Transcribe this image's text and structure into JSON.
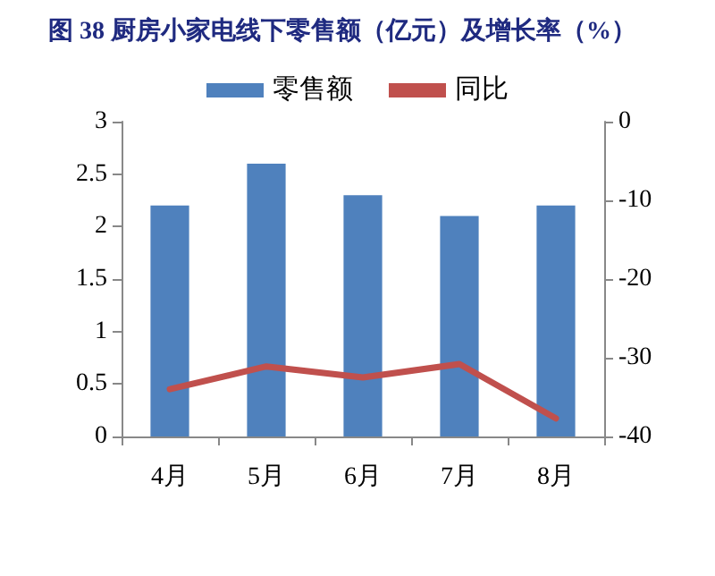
{
  "chart_data": {
    "type": "bar",
    "title": "图 38 厨房小家电线下零售额（亿元）及增长率（%）",
    "categories": [
      "4月",
      "5月",
      "6月",
      "7月",
      "8月"
    ],
    "series": [
      {
        "name": "零售额",
        "color": "#4f81bd",
        "values": [
          2.2,
          2.6,
          2.3,
          2.1,
          2.2
        ]
      },
      {
        "name": "同比",
        "type": "line",
        "axis": "y2",
        "color": "#c0504d",
        "values": [
          -34.0,
          -31.1,
          -32.5,
          -30.8,
          -37.7
        ]
      }
    ],
    "ylim": [
      0,
      3
    ],
    "yticks": [
      0,
      0.5,
      1,
      1.5,
      2,
      2.5,
      3
    ],
    "y2lim": [
      -40,
      0
    ],
    "y2ticks": [
      -40,
      -30,
      -20,
      -10,
      0
    ],
    "grid": false,
    "legend": "top",
    "marker": "none"
  }
}
